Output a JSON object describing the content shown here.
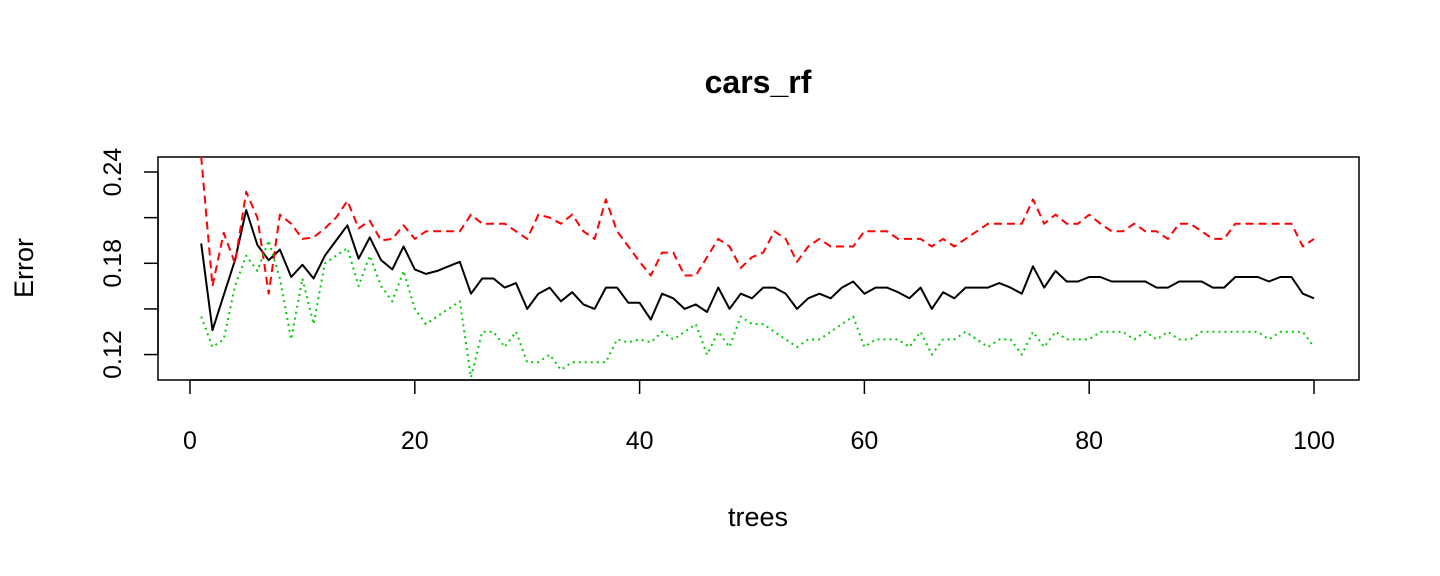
{
  "chart_data": {
    "type": "line",
    "title": "cars_rf",
    "xlabel": "trees",
    "ylabel": "Error",
    "xlim": [
      0,
      100
    ],
    "ylim": [
      0.1,
      0.25
    ],
    "x_ticks": [
      0,
      20,
      40,
      60,
      80,
      100
    ],
    "y_ticks": [
      0.12,
      0.15,
      0.18,
      0.21,
      0.24
    ],
    "y_tick_labels": [
      "0.12",
      "",
      "0.18",
      "",
      "0.24"
    ],
    "grid": false,
    "legend": "none",
    "x": [
      1,
      2,
      3,
      4,
      5,
      6,
      7,
      8,
      9,
      10,
      11,
      12,
      13,
      14,
      15,
      16,
      17,
      18,
      19,
      20,
      21,
      22,
      23,
      24,
      25,
      26,
      27,
      28,
      29,
      30,
      31,
      32,
      33,
      34,
      35,
      36,
      37,
      38,
      39,
      40,
      41,
      42,
      43,
      44,
      45,
      46,
      47,
      48,
      49,
      50,
      51,
      52,
      53,
      54,
      55,
      56,
      57,
      58,
      59,
      60,
      61,
      62,
      63,
      64,
      65,
      66,
      67,
      68,
      69,
      70,
      71,
      72,
      73,
      74,
      75,
      76,
      77,
      78,
      79,
      80,
      81,
      82,
      83,
      84,
      85,
      86,
      87,
      88,
      89,
      90,
      91,
      92,
      93,
      94,
      95,
      96,
      97,
      98,
      99,
      100
    ],
    "series": [
      {
        "color": "#000000",
        "dash": "solid",
        "values": [
          0.193,
          0.136,
          0.159,
          0.182,
          0.215,
          0.192,
          0.182,
          0.189,
          0.171,
          0.179,
          0.17,
          0.185,
          0.195,
          0.205,
          0.183,
          0.197,
          0.182,
          0.176,
          0.191,
          0.176,
          0.173,
          0.175,
          0.178,
          0.181,
          0.16,
          0.17,
          0.17,
          0.164,
          0.167,
          0.15,
          0.16,
          0.164,
          0.155,
          0.161,
          0.153,
          0.15,
          0.164,
          0.164,
          0.154,
          0.154,
          0.143,
          0.16,
          0.157,
          0.15,
          0.153,
          0.148,
          0.164,
          0.15,
          0.16,
          0.157,
          0.164,
          0.164,
          0.16,
          0.15,
          0.157,
          0.16,
          0.157,
          0.164,
          0.168,
          0.16,
          0.164,
          0.164,
          0.161,
          0.157,
          0.164,
          0.15,
          0.161,
          0.157,
          0.164,
          0.164,
          0.164,
          0.167,
          0.164,
          0.16,
          0.178,
          0.164,
          0.175,
          0.168,
          0.168,
          0.171,
          0.171,
          0.168,
          0.168,
          0.168,
          0.168,
          0.164,
          0.164,
          0.168,
          0.168,
          0.168,
          0.164,
          0.164,
          0.171,
          0.171,
          0.171,
          0.168,
          0.171,
          0.171,
          0.16,
          0.157
        ]
      },
      {
        "color": "#ff0000",
        "dash": "dashed",
        "values": [
          0.25,
          0.165,
          0.2,
          0.18,
          0.227,
          0.21,
          0.16,
          0.212,
          0.206,
          0.196,
          0.197,
          0.203,
          0.21,
          0.221,
          0.203,
          0.208,
          0.195,
          0.196,
          0.205,
          0.196,
          0.201,
          0.201,
          0.201,
          0.201,
          0.212,
          0.206,
          0.206,
          0.206,
          0.201,
          0.196,
          0.212,
          0.21,
          0.206,
          0.212,
          0.201,
          0.196,
          0.222,
          0.201,
          0.191,
          0.181,
          0.172,
          0.187,
          0.187,
          0.172,
          0.172,
          0.184,
          0.196,
          0.191,
          0.177,
          0.184,
          0.187,
          0.201,
          0.196,
          0.181,
          0.191,
          0.196,
          0.191,
          0.191,
          0.191,
          0.201,
          0.201,
          0.201,
          0.196,
          0.196,
          0.196,
          0.191,
          0.196,
          0.191,
          0.196,
          0.201,
          0.206,
          0.206,
          0.206,
          0.206,
          0.222,
          0.206,
          0.212,
          0.206,
          0.206,
          0.212,
          0.206,
          0.201,
          0.201,
          0.206,
          0.201,
          0.201,
          0.196,
          0.206,
          0.206,
          0.201,
          0.196,
          0.196,
          0.206,
          0.206,
          0.206,
          0.206,
          0.206,
          0.206,
          0.191,
          0.196
        ]
      },
      {
        "color": "#00cd00",
        "dash": "dotted",
        "values": [
          0.145,
          0.125,
          0.13,
          0.165,
          0.185,
          0.175,
          0.195,
          0.17,
          0.13,
          0.17,
          0.14,
          0.18,
          0.185,
          0.19,
          0.165,
          0.185,
          0.165,
          0.155,
          0.175,
          0.15,
          0.14,
          0.145,
          0.15,
          0.155,
          0.105,
          0.135,
          0.135,
          0.125,
          0.135,
          0.115,
          0.115,
          0.12,
          0.11,
          0.115,
          0.115,
          0.115,
          0.115,
          0.13,
          0.128,
          0.13,
          0.128,
          0.135,
          0.13,
          0.135,
          0.14,
          0.12,
          0.135,
          0.125,
          0.145,
          0.14,
          0.14,
          0.135,
          0.13,
          0.125,
          0.13,
          0.13,
          0.135,
          0.14,
          0.145,
          0.125,
          0.13,
          0.13,
          0.13,
          0.125,
          0.135,
          0.12,
          0.13,
          0.13,
          0.135,
          0.13,
          0.125,
          0.13,
          0.13,
          0.12,
          0.135,
          0.125,
          0.135,
          0.13,
          0.13,
          0.13,
          0.135,
          0.135,
          0.135,
          0.13,
          0.135,
          0.13,
          0.135,
          0.13,
          0.13,
          0.135,
          0.135,
          0.135,
          0.135,
          0.135,
          0.135,
          0.13,
          0.135,
          0.135,
          0.135,
          0.125
        ]
      }
    ]
  }
}
